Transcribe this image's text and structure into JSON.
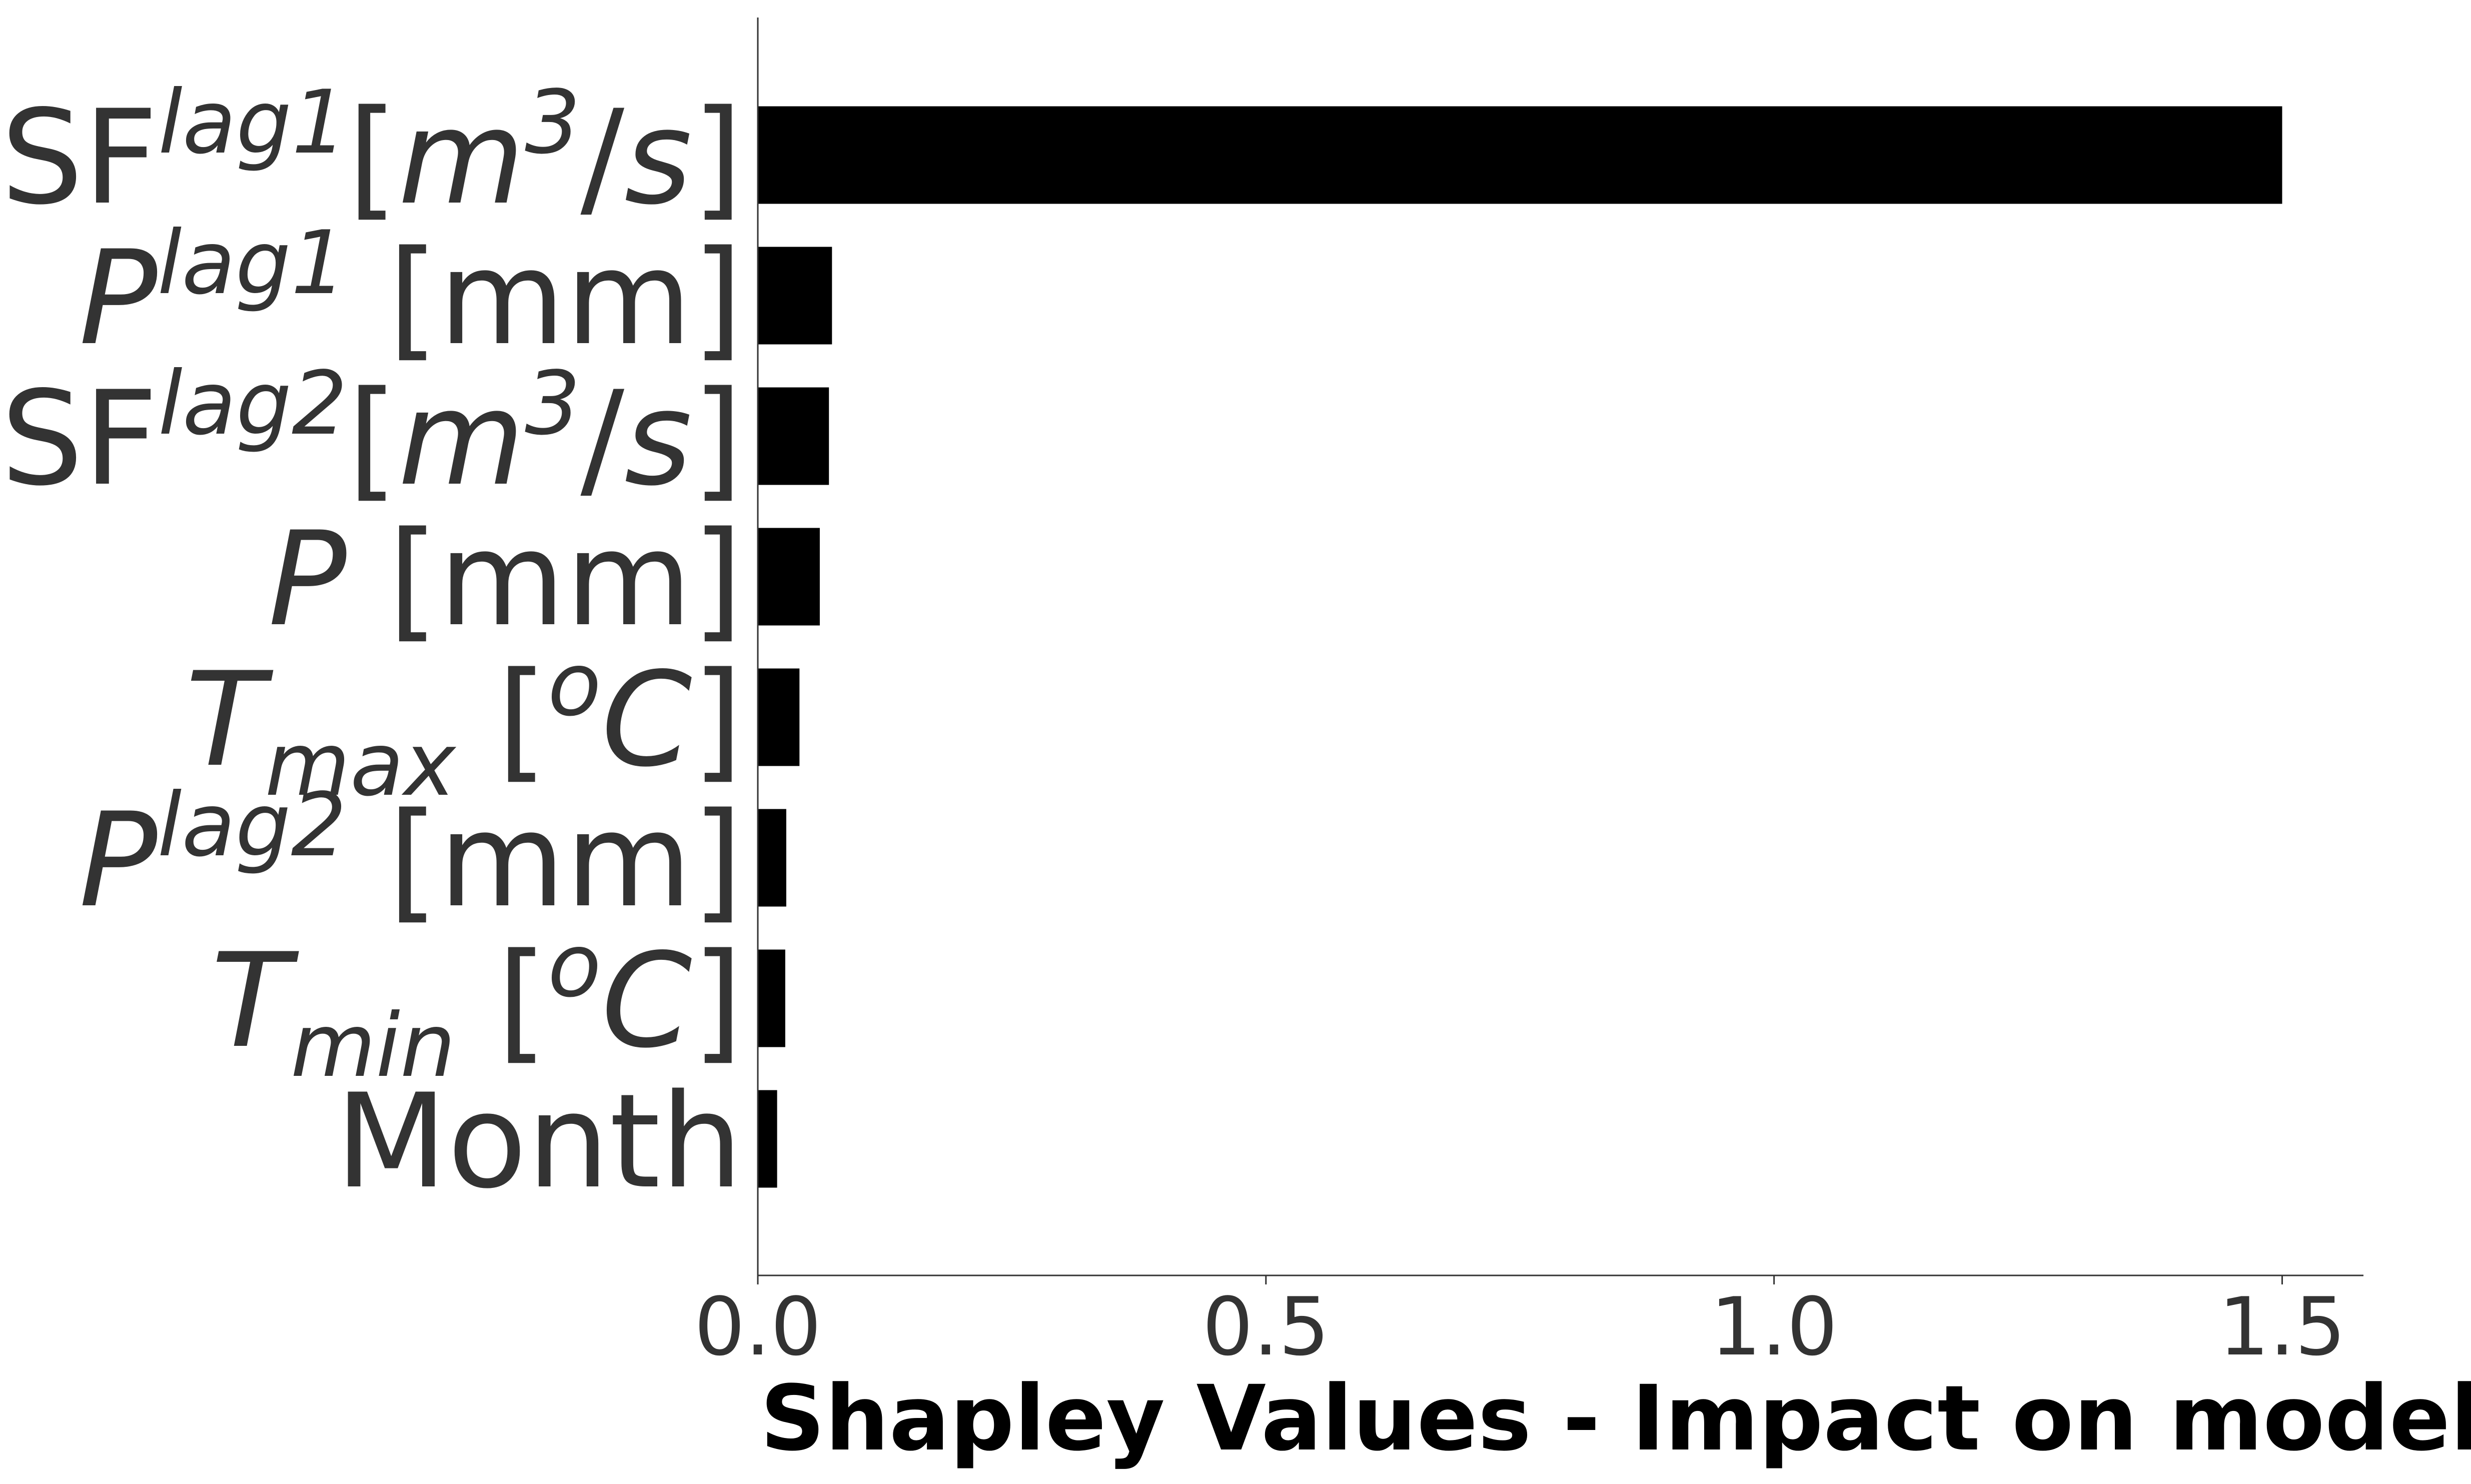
{
  "chart_data": {
    "type": "bar",
    "orientation": "horizontal",
    "categories": [
      "SF^lag1[m^3/s]",
      "P^lag1 [mm]",
      "SF^lag2[m^3/s]",
      "P [mm]",
      "T_max [^oC]",
      "P^lag2 [mm]",
      "T_min [^oC]",
      "Month"
    ],
    "category_parts": [
      [
        {
          "t": "SF",
          "s": "n"
        },
        {
          "t": "lag1",
          "s": "sup"
        },
        {
          "t": "[",
          "s": "n"
        },
        {
          "t": "m",
          "s": "i"
        },
        {
          "t": "3",
          "s": "sup"
        },
        {
          "t": "/",
          "s": "n"
        },
        {
          "t": "s",
          "s": "i"
        },
        {
          "t": "]",
          "s": "n"
        }
      ],
      [
        {
          "t": "P",
          "s": "i"
        },
        {
          "t": "lag1",
          "s": "sup"
        },
        {
          "t": " [mm]",
          "s": "n"
        }
      ],
      [
        {
          "t": "SF",
          "s": "n"
        },
        {
          "t": "lag2",
          "s": "sup"
        },
        {
          "t": "[",
          "s": "n"
        },
        {
          "t": "m",
          "s": "i"
        },
        {
          "t": "3",
          "s": "sup"
        },
        {
          "t": "/",
          "s": "n"
        },
        {
          "t": "s",
          "s": "i"
        },
        {
          "t": "]",
          "s": "n"
        }
      ],
      [
        {
          "t": "P",
          "s": "i"
        },
        {
          "t": " [mm]",
          "s": "n"
        }
      ],
      [
        {
          "t": "T",
          "s": "i"
        },
        {
          "t": "max",
          "s": "sub"
        },
        {
          "t": " [",
          "s": "n"
        },
        {
          "t": "o",
          "s": "sup"
        },
        {
          "t": "C",
          "s": "i"
        },
        {
          "t": "]",
          "s": "n"
        }
      ],
      [
        {
          "t": "P",
          "s": "i"
        },
        {
          "t": "lag2",
          "s": "sup"
        },
        {
          "t": " [mm]",
          "s": "n"
        }
      ],
      [
        {
          "t": "T",
          "s": "i"
        },
        {
          "t": "min",
          "s": "sub"
        },
        {
          "t": " [",
          "s": "n"
        },
        {
          "t": "o",
          "s": "sup"
        },
        {
          "t": "C",
          "s": "i"
        },
        {
          "t": "]",
          "s": "n"
        }
      ],
      [
        {
          "t": "Month",
          "s": "n"
        }
      ]
    ],
    "values": [
      1.5,
      0.073,
      0.07,
      0.061,
      0.041,
      0.028,
      0.027,
      0.019
    ],
    "xlabel": "Shapley Values - Impact on model",
    "xlim": [
      0,
      1.58
    ],
    "xticks": [
      0.0,
      0.5,
      1.0,
      1.5
    ],
    "xtick_labels": [
      "0.0",
      "0.5",
      "1.0",
      "1.5"
    ],
    "bar_color": "#000000",
    "axis_color": "#333333",
    "grid": false,
    "legend": "none"
  }
}
